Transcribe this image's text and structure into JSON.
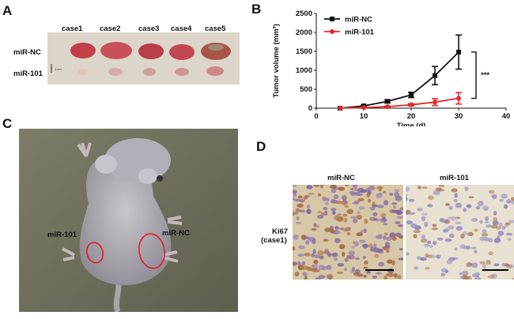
{
  "panels": {
    "a": {
      "letter": "A",
      "cases": [
        "case1",
        "case2",
        "case3",
        "case4",
        "case5"
      ],
      "row_labels": [
        "miR-NC",
        "miR-101"
      ],
      "scale_text": "1 cm"
    },
    "b": {
      "letter": "B"
    },
    "c": {
      "letter": "C",
      "label_left": "miR-101",
      "label_right": "miR-NC"
    },
    "d": {
      "letter": "D",
      "col_labels": [
        "miR-NC",
        "miR-101"
      ],
      "row_label_1": "Ki67",
      "row_label_2": "(case1)"
    }
  },
  "colors": {
    "nc": "#111111",
    "mir101": "#e8282a",
    "tumor_red": "#d8312f"
  },
  "chart_data": {
    "type": "line",
    "title": "",
    "xlabel": "Time (d)",
    "ylabel": "Tumor volume (mm³)",
    "xlim": [
      0,
      40
    ],
    "ylim": [
      0,
      2500
    ],
    "xticks": [
      0,
      10,
      20,
      30,
      40
    ],
    "yticks": [
      0,
      500,
      1000,
      1500,
      2000,
      2500
    ],
    "legend_position": "top-left",
    "annotation": "***",
    "x": [
      5,
      10,
      15,
      20,
      25,
      30
    ],
    "series": [
      {
        "name": "miR-NC",
        "color": "#111111",
        "marker": "square",
        "values": [
          0,
          60,
          180,
          350,
          860,
          1480
        ],
        "errors": [
          0,
          20,
          40,
          70,
          240,
          450
        ]
      },
      {
        "name": "miR-101",
        "color": "#e8282a",
        "marker": "circle",
        "values": [
          0,
          15,
          40,
          90,
          160,
          260
        ],
        "errors": [
          0,
          10,
          15,
          30,
          90,
          150
        ]
      }
    ]
  }
}
